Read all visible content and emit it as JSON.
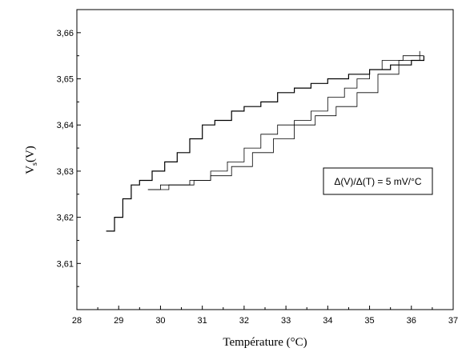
{
  "chart_data": {
    "type": "line",
    "xlabel": "Température (°C)",
    "ylabel_main": "V",
    "ylabel_sub": "s",
    "ylabel_unit": "(V)",
    "xlim": [
      28,
      37
    ],
    "ylim": [
      3.6,
      3.665
    ],
    "x_ticks": [
      "28",
      "29",
      "30",
      "31",
      "32",
      "33",
      "34",
      "35",
      "36",
      "37"
    ],
    "y_ticks": [
      "3,61",
      "3,62",
      "3,63",
      "3,64",
      "3,65",
      "3,66"
    ],
    "annotation": "Δ(V)/Δ(T) = 5 mV/°C",
    "grid": false,
    "line_color": "#000000",
    "series": [
      {
        "values": [
          [
            28.7,
            3.617
          ],
          [
            28.9,
            3.62
          ],
          [
            29.1,
            3.624
          ],
          [
            29.3,
            3.627
          ],
          [
            29.5,
            3.628
          ],
          [
            29.8,
            3.63
          ],
          [
            30.1,
            3.632
          ],
          [
            30.4,
            3.634
          ],
          [
            30.7,
            3.637
          ],
          [
            31.0,
            3.64
          ],
          [
            31.3,
            3.641
          ],
          [
            31.7,
            3.643
          ],
          [
            32.0,
            3.644
          ],
          [
            32.4,
            3.645
          ],
          [
            32.8,
            3.647
          ],
          [
            33.2,
            3.648
          ],
          [
            33.6,
            3.649
          ],
          [
            34.0,
            3.65
          ],
          [
            34.5,
            3.651
          ],
          [
            35.0,
            3.652
          ],
          [
            35.5,
            3.653
          ],
          [
            36.0,
            3.654
          ],
          [
            36.3,
            3.655
          ]
        ]
      },
      {
        "values": [
          [
            36.3,
            3.655
          ],
          [
            35.8,
            3.654
          ],
          [
            35.3,
            3.652
          ],
          [
            35.0,
            3.65
          ],
          [
            34.7,
            3.648
          ],
          [
            34.4,
            3.646
          ],
          [
            34.0,
            3.643
          ],
          [
            33.6,
            3.641
          ],
          [
            33.2,
            3.64
          ],
          [
            32.8,
            3.638
          ],
          [
            32.4,
            3.635
          ],
          [
            32.0,
            3.632
          ],
          [
            31.6,
            3.63
          ],
          [
            31.2,
            3.628
          ],
          [
            30.8,
            3.627
          ],
          [
            30.4,
            3.627
          ],
          [
            30.0,
            3.626
          ],
          [
            29.7,
            3.626
          ]
        ]
      },
      {
        "values": [
          [
            29.7,
            3.626
          ],
          [
            30.2,
            3.627
          ],
          [
            30.7,
            3.628
          ],
          [
            31.2,
            3.629
          ],
          [
            31.7,
            3.631
          ],
          [
            32.2,
            3.634
          ],
          [
            32.7,
            3.637
          ],
          [
            33.2,
            3.64
          ],
          [
            33.7,
            3.642
          ],
          [
            34.2,
            3.644
          ],
          [
            34.7,
            3.647
          ],
          [
            35.2,
            3.651
          ],
          [
            35.7,
            3.654
          ],
          [
            36.2,
            3.656
          ]
        ]
      }
    ]
  }
}
